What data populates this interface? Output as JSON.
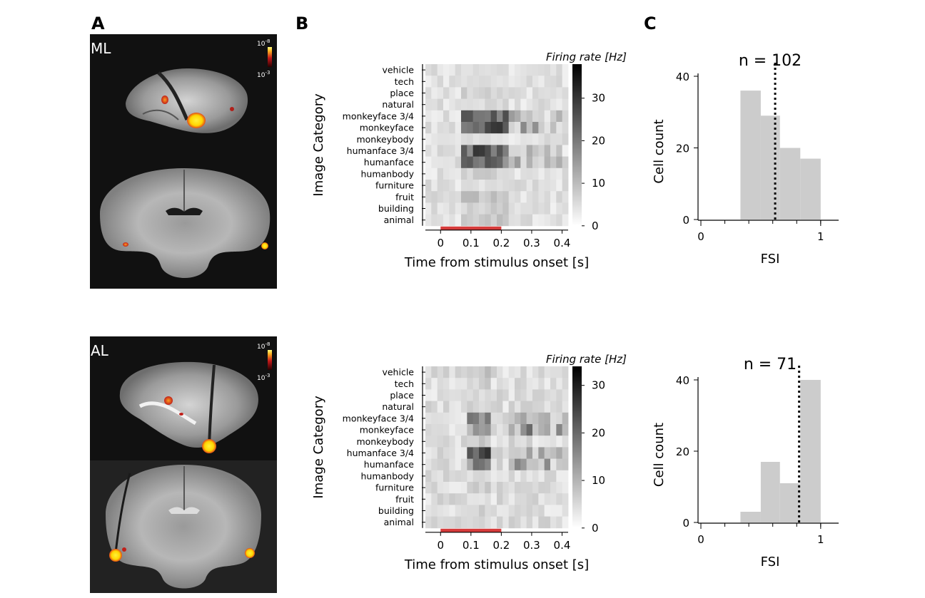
{
  "panel_letters": [
    "A",
    "B",
    "C"
  ],
  "rows": [
    {
      "area_label": "ML",
      "mri_scale": {
        "top": "10",
        "top_exp": "-8",
        "bottom": "10",
        "bottom_exp": "-3"
      },
      "heatmap": {
        "ylabel": "Image Category",
        "xlabel": "Time from stimulus onset [s]",
        "colorbar_title": "Firing rate [Hz]",
        "colorbar_ticks": [
          "0",
          "10",
          "20",
          "30"
        ],
        "colorbar_max": 38
      },
      "hist": {
        "title": "n = 102",
        "xlabel": "FSI",
        "ylabel": "Cell count",
        "yticks": [
          "0",
          "20",
          "40"
        ],
        "xticks": [
          "0",
          "1"
        ]
      }
    },
    {
      "area_label": "AL",
      "mri_scale": {
        "top": "10",
        "top_exp": "-8",
        "bottom": "10",
        "bottom_exp": "-3"
      },
      "heatmap": {
        "ylabel": "Image Category",
        "xlabel": "Time from stimulus onset [s]",
        "colorbar_title": "Firing rate [Hz]",
        "colorbar_ticks": [
          "0",
          "10",
          "20",
          "30"
        ],
        "colorbar_max": 34
      },
      "hist": {
        "title": "n = 71",
        "xlabel": "FSI",
        "ylabel": "Cell count",
        "yticks": [
          "0",
          "20",
          "40"
        ],
        "xticks": [
          "0",
          "1"
        ]
      }
    }
  ],
  "chart_data": [
    {
      "type": "heatmap",
      "categories": [
        "vehicle",
        "tech",
        "place",
        "natural",
        "monkeyface 3/4",
        "monkeyface",
        "monkeybody",
        "humanface 3/4",
        "humanface",
        "humanbody",
        "furniture",
        "fruit",
        "building",
        "animal"
      ],
      "x_ticks": [
        "0",
        "0.1",
        "0.2",
        "0.3",
        "0.4"
      ],
      "x_range": [
        -0.05,
        0.42
      ],
      "time_bins": 24,
      "stimulus_bar": [
        0,
        0.2
      ],
      "color_range": [
        0,
        38
      ],
      "peak_rates": [
        6,
        6,
        9,
        7,
        28,
        34,
        6,
        30,
        28,
        9,
        6,
        12,
        9,
        11
      ],
      "response_window": [
        0.06,
        0.22
      ],
      "xlabel": "Time from stimulus onset [s]",
      "ylabel": "Image Category",
      "colorbar_label": "Firing rate [Hz]"
    },
    {
      "type": "bar",
      "title": "n = 102",
      "bins": [
        [
          0.33,
          0.5
        ],
        [
          0.5,
          0.66
        ],
        [
          0.66,
          0.83
        ],
        [
          0.83,
          1.0
        ]
      ],
      "values": [
        36,
        29,
        20,
        17
      ],
      "median_line": 0.62,
      "xlim": [
        0,
        1.15
      ],
      "ylim": [
        0,
        40
      ],
      "xlabel": "FSI",
      "ylabel": "Cell count"
    },
    {
      "type": "heatmap",
      "categories": [
        "vehicle",
        "tech",
        "place",
        "natural",
        "monkeyface 3/4",
        "monkeyface",
        "monkeybody",
        "humanface 3/4",
        "humanface",
        "humanbody",
        "furniture",
        "fruit",
        "building",
        "animal"
      ],
      "x_ticks": [
        "0",
        "0.1",
        "0.2",
        "0.3",
        "0.4"
      ],
      "x_range": [
        -0.05,
        0.42
      ],
      "time_bins": 24,
      "stimulus_bar": [
        0,
        0.2
      ],
      "color_range": [
        0,
        34
      ],
      "peak_rates": [
        10,
        8,
        6,
        7,
        20,
        16,
        10,
        34,
        20,
        6,
        8,
        6,
        8,
        6
      ],
      "response_window": [
        0.08,
        0.16
      ],
      "xlabel": "Time from stimulus onset [s]",
      "ylabel": "Image Category",
      "colorbar_label": "Firing rate [Hz]"
    },
    {
      "type": "bar",
      "title": "n = 71",
      "bins": [
        [
          0.33,
          0.5
        ],
        [
          0.5,
          0.66
        ],
        [
          0.66,
          0.83
        ],
        [
          0.83,
          1.0
        ]
      ],
      "values": [
        3,
        17,
        11,
        40
      ],
      "median_line": 0.82,
      "xlim": [
        0,
        1.15
      ],
      "ylim": [
        0,
        40
      ],
      "xlabel": "FSI",
      "ylabel": "Cell count"
    }
  ],
  "colors": {
    "bar_fill": "#cccccc",
    "stimulus_bar": "#d63b3b",
    "mri_bg": "#111111",
    "activation_hot": "#ffe21a",
    "activation_low": "#d42a1c"
  }
}
